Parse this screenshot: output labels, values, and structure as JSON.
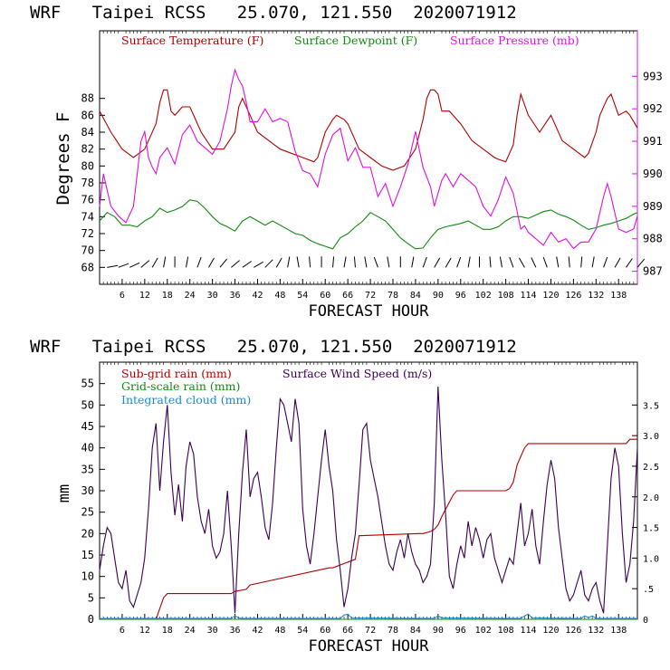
{
  "chart_data": [
    {
      "type": "line",
      "title": "WRF   Taipei RCSS   25.070, 121.550  2020071912",
      "xlabel": "FORECAST HOUR",
      "ylabel": "Degrees F",
      "xlim": [
        0,
        143
      ],
      "ylim": [
        66,
        96
      ],
      "y2lim": [
        986.6,
        994.4
      ],
      "x_ticks": [
        6,
        12,
        18,
        24,
        30,
        36,
        42,
        48,
        54,
        60,
        66,
        72,
        78,
        84,
        90,
        96,
        102,
        108,
        114,
        120,
        126,
        132,
        138
      ],
      "y_ticks": [
        68,
        70,
        72,
        74,
        76,
        78,
        80,
        82,
        84,
        86,
        88
      ],
      "y2_ticks": [
        987,
        988,
        989,
        990,
        991,
        992,
        993
      ],
      "legend": [
        "Surface Temperature (F)",
        "Surface Dewpoint (F)",
        "Surface Pressure (mb)"
      ],
      "colors": {
        "temperature": "#b00000",
        "dewpoint": "#108a10",
        "pressure": "#e010e0",
        "wind": "#000000"
      },
      "series": [
        {
          "name": "Surface Temperature (F)",
          "axis": "left",
          "color": "#b00000",
          "x": [
            0,
            3,
            6,
            9,
            12,
            15,
            16,
            17,
            18,
            19,
            20,
            21,
            22,
            24,
            27,
            30,
            33,
            36,
            37,
            38,
            40,
            42,
            45,
            48,
            51,
            54,
            57,
            58,
            60,
            62,
            63,
            65,
            66,
            69,
            72,
            75,
            78,
            81,
            84,
            86,
            87,
            88,
            89,
            90,
            91,
            93,
            96,
            99,
            102,
            105,
            106,
            108,
            110,
            111,
            112,
            114,
            117,
            120,
            123,
            126,
            129,
            130,
            132,
            133,
            135,
            136,
            138,
            140,
            141,
            143
          ],
          "y": [
            86.5,
            84,
            82,
            81,
            82,
            85,
            87.5,
            89,
            89,
            86.5,
            86,
            86.5,
            87,
            87,
            84,
            82,
            82,
            84,
            87,
            88,
            86,
            84,
            83,
            82,
            81.5,
            81,
            80.5,
            81,
            84,
            85.5,
            86,
            85.5,
            85,
            82,
            81,
            80,
            79.5,
            80,
            82,
            85.5,
            88,
            89,
            89,
            88.5,
            86.5,
            86.5,
            85,
            83,
            82,
            81,
            80.8,
            80.5,
            82.5,
            86,
            88.5,
            86,
            84,
            86,
            83,
            82,
            81,
            81.5,
            84,
            86,
            88,
            88.5,
            86,
            86.5,
            86,
            84.5
          ]
        },
        {
          "name": "Surface Dewpoint (F)",
          "axis": "left",
          "color": "#108a10",
          "x": [
            0,
            2,
            4,
            6,
            8,
            10,
            12,
            14,
            16,
            18,
            20,
            22,
            24,
            26,
            28,
            30,
            32,
            34,
            36,
            38,
            40,
            42,
            44,
            46,
            48,
            50,
            52,
            54,
            56,
            58,
            60,
            62,
            64,
            66,
            68,
            70,
            72,
            74,
            76,
            78,
            80,
            82,
            84,
            86,
            88,
            90,
            92,
            94,
            96,
            98,
            100,
            102,
            104,
            106,
            108,
            110,
            112,
            114,
            116,
            118,
            120,
            122,
            124,
            126,
            128,
            130,
            132,
            134,
            136,
            138,
            140,
            142,
            143
          ],
          "y": [
            73.5,
            74.5,
            74,
            73,
            73,
            72.8,
            73.5,
            74,
            75,
            74.5,
            74.8,
            75.2,
            76,
            75.8,
            75,
            74,
            73.2,
            72.8,
            72.3,
            73.5,
            74,
            73.5,
            73,
            73.5,
            73,
            72.5,
            72,
            71.8,
            71.2,
            70.8,
            70.5,
            70.2,
            71.5,
            72,
            72.8,
            73.5,
            74.5,
            74,
            73.5,
            72.5,
            71.5,
            70.8,
            70.2,
            70.3,
            71.5,
            72.5,
            72.8,
            73,
            73.2,
            73.5,
            73,
            72.5,
            72.5,
            72.8,
            73.5,
            74,
            74,
            73.8,
            74.2,
            74.6,
            74.8,
            74.3,
            74,
            73.6,
            73,
            72.5,
            72.7,
            73,
            73.2,
            73.5,
            73.8,
            74.3,
            74.5
          ]
        },
        {
          "name": "Surface Pressure (mb)",
          "axis": "right",
          "color": "#e010e0",
          "x": [
            0,
            1,
            2,
            3,
            5,
            7,
            9,
            11,
            12,
            13,
            14,
            15,
            16,
            18,
            20,
            22,
            24,
            26,
            28,
            30,
            32,
            34,
            35,
            36,
            37,
            38,
            39,
            40,
            42,
            44,
            46,
            48,
            50,
            52,
            54,
            56,
            58,
            60,
            62,
            64,
            66,
            68,
            70,
            72,
            74,
            76,
            78,
            80,
            82,
            84,
            86,
            88,
            89,
            90,
            91,
            92,
            94,
            96,
            98,
            100,
            102,
            104,
            106,
            108,
            110,
            112,
            113,
            114,
            116,
            118,
            120,
            122,
            124,
            126,
            128,
            130,
            132,
            134,
            135,
            136,
            138,
            140,
            142,
            143
          ],
          "y": [
            989,
            990,
            989.5,
            989,
            988.7,
            988.5,
            989,
            991,
            991.3,
            990.5,
            990.2,
            990,
            990.5,
            990.8,
            990.3,
            991.2,
            991.5,
            991,
            990.8,
            990.6,
            991,
            992,
            992.7,
            993.2,
            992.9,
            992.7,
            992.2,
            991.6,
            991.6,
            992,
            991.6,
            991.7,
            991.6,
            990.7,
            990.1,
            990,
            989.6,
            990.6,
            991.2,
            991.4,
            990.4,
            990.8,
            990.2,
            990.2,
            989.3,
            989.7,
            989,
            989.6,
            990.3,
            991.3,
            990.2,
            989.6,
            989,
            989.4,
            989.8,
            990,
            989.6,
            990,
            989.8,
            989.6,
            989,
            988.7,
            989.2,
            989.9,
            989.4,
            988.3,
            988.4,
            988.2,
            988,
            987.8,
            988.2,
            987.9,
            988,
            987.7,
            987.9,
            987.9,
            988.3,
            989.3,
            989.7,
            989.3,
            988.3,
            988.2,
            988.3,
            988.7
          ]
        }
      ],
      "wind_barb_row": {
        "y": 68,
        "label": "surface wind barbs along bottom row"
      }
    },
    {
      "type": "line",
      "title": "WRF   Taipei RCSS   25.070, 121.550  2020071912",
      "xlabel": "FORECAST HOUR",
      "ylabel": "mm",
      "xlim": [
        0,
        143
      ],
      "ylim": [
        0,
        60
      ],
      "y2lim": [
        0,
        4.2
      ],
      "x_ticks": [
        6,
        12,
        18,
        24,
        30,
        36,
        42,
        48,
        54,
        60,
        66,
        72,
        78,
        84,
        90,
        96,
        102,
        108,
        114,
        120,
        126,
        132,
        138
      ],
      "y_ticks": [
        0,
        5,
        10,
        15,
        20,
        25,
        30,
        35,
        40,
        45,
        50,
        55
      ],
      "y2_ticks": [
        0,
        0.5,
        1.0,
        1.5,
        2.0,
        2.5,
        3.0,
        3.5
      ],
      "y2_tick_labels": [
        "0",
        ".5",
        "1.0",
        "1.5",
        "2.0",
        "2.5",
        "3.0",
        "3.5"
      ],
      "legend": [
        "Sub-grid rain (mm)",
        "Grid-scale rain (mm)",
        "Integrated cloud (mm)",
        "Surface Wind Speed (m/s)"
      ],
      "colors": {
        "subgrid": "#b00000",
        "gridscale": "#108a10",
        "cloud": "#1e8ad0",
        "wind": "#3a0050"
      },
      "series": [
        {
          "name": "Sub-grid rain (mm)",
          "axis": "left",
          "color": "#b00000",
          "x": [
            0,
            15,
            17,
            18,
            35,
            36,
            39,
            40,
            61,
            62,
            68,
            69,
            85,
            86,
            88,
            89,
            90,
            91,
            94,
            95,
            108,
            109,
            110,
            111,
            112,
            113,
            114,
            115,
            140,
            141,
            143
          ],
          "y": [
            0,
            0,
            5,
            6,
            6,
            6.5,
            7,
            8,
            12,
            12,
            14,
            19.5,
            20,
            20,
            20.5,
            21,
            22,
            24,
            29,
            30,
            30,
            30.5,
            32,
            36,
            38,
            40,
            41,
            41,
            41,
            42,
            42
          ]
        },
        {
          "name": "Grid-scale rain (mm)",
          "axis": "left",
          "color": "#108a10",
          "x": [
            0,
            143
          ],
          "y": [
            0,
            0
          ]
        },
        {
          "name": "Integrated cloud (mm)",
          "axis": "left",
          "color": "#1e8ad0",
          "x": [
            0,
            35,
            36,
            37,
            38,
            64,
            65,
            66,
            67,
            89,
            90,
            91,
            112,
            113,
            114,
            115,
            128,
            129,
            130,
            131,
            132,
            143
          ],
          "y": [
            0.2,
            0.2,
            0.8,
            0.3,
            0.2,
            0.2,
            1,
            1.2,
            0.3,
            0.2,
            0.8,
            0.3,
            0.2,
            0.8,
            1.2,
            0.3,
            0.2,
            0.8,
            0.4,
            0.8,
            0.2,
            0.2
          ]
        },
        {
          "name": "Surface Wind Speed (m/s)",
          "axis": "right",
          "color": "#3a0050",
          "x": [
            0,
            1,
            2,
            3,
            4,
            5,
            6,
            7,
            8,
            9,
            10,
            11,
            12,
            13,
            14,
            15,
            16,
            17,
            18,
            19,
            20,
            21,
            22,
            23,
            24,
            25,
            26,
            27,
            28,
            29,
            30,
            31,
            32,
            33,
            34,
            35,
            36,
            37,
            38,
            39,
            40,
            41,
            42,
            43,
            44,
            45,
            46,
            47,
            48,
            49,
            50,
            51,
            52,
            53,
            54,
            55,
            56,
            57,
            58,
            59,
            60,
            61,
            62,
            63,
            64,
            65,
            66,
            67,
            68,
            69,
            70,
            71,
            72,
            73,
            74,
            75,
            76,
            77,
            78,
            79,
            80,
            81,
            82,
            83,
            84,
            85,
            86,
            87,
            88,
            89,
            90,
            91,
            92,
            93,
            94,
            95,
            96,
            97,
            98,
            99,
            100,
            101,
            102,
            103,
            104,
            105,
            106,
            107,
            108,
            109,
            110,
            111,
            112,
            113,
            114,
            115,
            116,
            117,
            118,
            119,
            120,
            121,
            122,
            123,
            124,
            125,
            126,
            127,
            128,
            129,
            130,
            131,
            132,
            133,
            134,
            135,
            136,
            137,
            138,
            139,
            140,
            141,
            142,
            143
          ],
          "y": [
            0.8,
            1.2,
            1.5,
            1.4,
            1.0,
            0.6,
            0.5,
            0.8,
            0.3,
            0.2,
            0.4,
            0.6,
            1.0,
            1.8,
            2.8,
            3.2,
            2.1,
            2.9,
            3.5,
            2.4,
            1.7,
            2.2,
            1.6,
            2.5,
            2.9,
            2.7,
            2.0,
            1.6,
            1.4,
            1.8,
            1.2,
            1.0,
            1.1,
            1.4,
            2.1,
            1.2,
            0.1,
            1.4,
            2.4,
            3.1,
            2.0,
            2.3,
            2.4,
            2.0,
            1.5,
            1.3,
            1.9,
            2.8,
            3.6,
            3.5,
            3.2,
            2.9,
            3.6,
            3.2,
            1.8,
            1.2,
            0.9,
            1.4,
            2.0,
            2.6,
            3.1,
            2.5,
            2.1,
            1.3,
            0.8,
            0.2,
            0.5,
            1.0,
            1.4,
            2.2,
            3.1,
            3.2,
            2.6,
            2.3,
            2.0,
            1.6,
            1.2,
            0.9,
            0.8,
            1.1,
            1.3,
            1.0,
            1.4,
            1.1,
            0.9,
            0.8,
            0.6,
            0.7,
            0.9,
            1.9,
            3.8,
            2.6,
            1.7,
            0.7,
            0.5,
            0.9,
            1.2,
            1.0,
            1.6,
            1.2,
            1.5,
            1.3,
            1.0,
            1.3,
            1.4,
            1.0,
            0.8,
            0.6,
            0.8,
            1.0,
            0.9,
            1.4,
            1.9,
            1.2,
            1.4,
            1.8,
            1.2,
            0.9,
            1.6,
            2.2,
            2.6,
            2.3,
            1.5,
            1.0,
            0.5,
            0.3,
            0.4,
            0.6,
            0.8,
            0.4,
            0.3,
            0.5,
            0.6,
            0.3,
            0.1,
            1.2,
            2.3,
            2.8,
            2.5,
            1.4,
            0.6,
            0.9,
            1.6,
            2.8
          ]
        }
      ]
    }
  ]
}
